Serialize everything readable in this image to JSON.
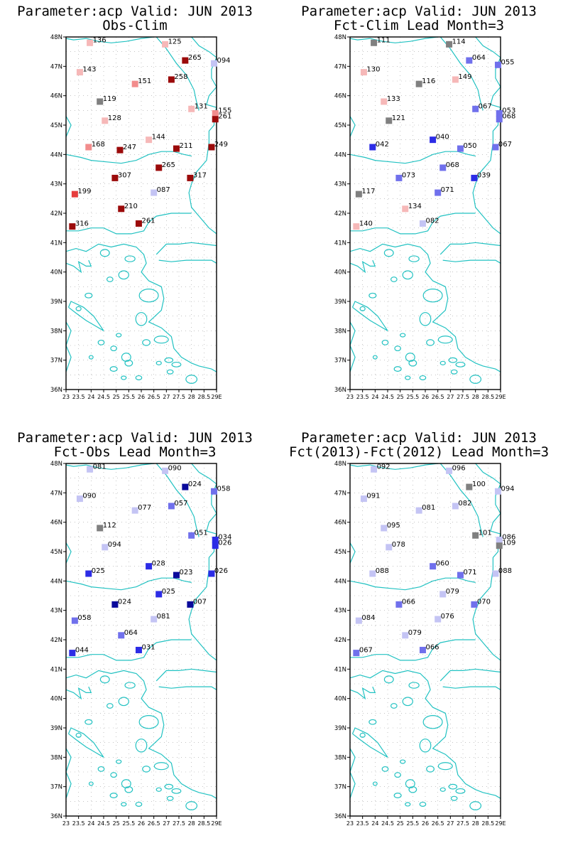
{
  "panels": [
    {
      "title": "Parameter:acp Valid: JUN 2013",
      "subtitle": "Obs-Clim"
    },
    {
      "title": "Parameter:acp Valid: JUN 2013",
      "subtitle": "Fct-Clim Lead Month=3"
    },
    {
      "title": "Parameter:acp Valid: JUN 2013",
      "subtitle": "Fct-Obs Lead Month=3"
    },
    {
      "title": "Parameter:acp Valid: JUN 2013",
      "subtitle": "Fct(2013)-Fct(2012) Lead Month=3"
    }
  ],
  "colors": {
    "coast": "#22c2c2",
    "grid": "#a0a0a0",
    "frame": "#000000",
    "grey": "#808080",
    "red_dark": "#9b0a0a",
    "red": "#e63c3c",
    "salmon": "#f28c8c",
    "pink": "#f6b8b8",
    "lavender": "#c4c4f4",
    "lilac": "#9c9cf0",
    "periwinkle": "#7070ec",
    "blue": "#2c2ce6",
    "navy": "#0a0a9b"
  },
  "chart_data": {
    "type": "map",
    "xlim": [
      23,
      29
    ],
    "ylim": [
      36,
      48
    ],
    "lat_ticks": [
      "36N",
      "37N",
      "38N",
      "39N",
      "40N",
      "41N",
      "42N",
      "43N",
      "44N",
      "45N",
      "46N",
      "47N",
      "48N"
    ],
    "lon_ticks": [
      "23",
      "23.5",
      "24",
      "24.5",
      "25",
      "25.5",
      "26",
      "26.5",
      "27",
      "27.5",
      "28",
      "28.5",
      "29E"
    ],
    "grid": true,
    "panels": [
      {
        "name": "Obs-Clim",
        "stations": [
          {
            "lon": 23.95,
            "lat": 47.8,
            "label": "136",
            "color": "pink"
          },
          {
            "lon": 26.95,
            "lat": 47.75,
            "label": "125",
            "color": "pink"
          },
          {
            "lon": 27.75,
            "lat": 47.2,
            "label": "265",
            "color": "red_dark"
          },
          {
            "lon": 28.9,
            "lat": 47.1,
            "label": "094",
            "color": "lavender"
          },
          {
            "lon": 23.55,
            "lat": 46.8,
            "label": "143",
            "color": "pink"
          },
          {
            "lon": 25.75,
            "lat": 46.4,
            "label": "151",
            "color": "salmon"
          },
          {
            "lon": 27.2,
            "lat": 46.55,
            "label": "258",
            "color": "red_dark"
          },
          {
            "lon": 24.35,
            "lat": 45.8,
            "label": "119",
            "color": "grey"
          },
          {
            "lon": 28.0,
            "lat": 45.55,
            "label": "131",
            "color": "pink"
          },
          {
            "lon": 28.95,
            "lat": 45.4,
            "label": "155",
            "color": "salmon"
          },
          {
            "lon": 28.95,
            "lat": 45.2,
            "label": "261",
            "color": "red_dark"
          },
          {
            "lon": 24.55,
            "lat": 45.15,
            "label": "128",
            "color": "pink"
          },
          {
            "lon": 26.3,
            "lat": 44.5,
            "label": "144",
            "color": "pink"
          },
          {
            "lon": 23.9,
            "lat": 44.25,
            "label": "168",
            "color": "salmon"
          },
          {
            "lon": 25.15,
            "lat": 44.15,
            "label": "247",
            "color": "red_dark"
          },
          {
            "lon": 27.4,
            "lat": 44.2,
            "label": "211",
            "color": "red_dark"
          },
          {
            "lon": 28.8,
            "lat": 44.25,
            "label": "249",
            "color": "red_dark"
          },
          {
            "lon": 26.7,
            "lat": 43.55,
            "label": "265",
            "color": "red_dark"
          },
          {
            "lon": 24.95,
            "lat": 43.2,
            "label": "307",
            "color": "red_dark"
          },
          {
            "lon": 27.95,
            "lat": 43.2,
            "label": "317",
            "color": "red_dark"
          },
          {
            "lon": 23.35,
            "lat": 42.65,
            "label": "199",
            "color": "red"
          },
          {
            "lon": 26.5,
            "lat": 42.7,
            "label": "087",
            "color": "lavender"
          },
          {
            "lon": 25.2,
            "lat": 42.15,
            "label": "210",
            "color": "red_dark"
          },
          {
            "lon": 25.9,
            "lat": 41.65,
            "label": "261",
            "color": "red_dark"
          },
          {
            "lon": 23.25,
            "lat": 41.55,
            "label": "316",
            "color": "red_dark"
          }
        ]
      },
      {
        "name": "Fct-Clim Lead Month=3",
        "stations": [
          {
            "lon": 23.95,
            "lat": 47.8,
            "label": "111",
            "color": "grey"
          },
          {
            "lon": 26.95,
            "lat": 47.75,
            "label": "114",
            "color": "grey"
          },
          {
            "lon": 27.75,
            "lat": 47.2,
            "label": "064",
            "color": "periwinkle"
          },
          {
            "lon": 28.9,
            "lat": 47.05,
            "label": "055",
            "color": "periwinkle"
          },
          {
            "lon": 23.55,
            "lat": 46.8,
            "label": "130",
            "color": "pink"
          },
          {
            "lon": 25.75,
            "lat": 46.4,
            "label": "116",
            "color": "grey"
          },
          {
            "lon": 27.2,
            "lat": 46.55,
            "label": "149",
            "color": "pink"
          },
          {
            "lon": 24.35,
            "lat": 45.8,
            "label": "133",
            "color": "pink"
          },
          {
            "lon": 28.0,
            "lat": 45.55,
            "label": "067",
            "color": "periwinkle"
          },
          {
            "lon": 28.95,
            "lat": 45.4,
            "label": "053",
            "color": "periwinkle"
          },
          {
            "lon": 28.95,
            "lat": 45.2,
            "label": "068",
            "color": "periwinkle"
          },
          {
            "lon": 24.55,
            "lat": 45.15,
            "label": "121",
            "color": "grey"
          },
          {
            "lon": 26.3,
            "lat": 44.5,
            "label": "040",
            "color": "blue"
          },
          {
            "lon": 23.9,
            "lat": 44.25,
            "label": "042",
            "color": "blue"
          },
          {
            "lon": 27.4,
            "lat": 44.2,
            "label": "050",
            "color": "periwinkle"
          },
          {
            "lon": 28.8,
            "lat": 44.25,
            "label": "067",
            "color": "periwinkle"
          },
          {
            "lon": 26.7,
            "lat": 43.55,
            "label": "068",
            "color": "periwinkle"
          },
          {
            "lon": 24.95,
            "lat": 43.2,
            "label": "073",
            "color": "periwinkle"
          },
          {
            "lon": 27.95,
            "lat": 43.2,
            "label": "039",
            "color": "blue"
          },
          {
            "lon": 23.35,
            "lat": 42.65,
            "label": "117",
            "color": "grey"
          },
          {
            "lon": 26.5,
            "lat": 42.7,
            "label": "071",
            "color": "periwinkle"
          },
          {
            "lon": 25.2,
            "lat": 42.15,
            "label": "134",
            "color": "pink"
          },
          {
            "lon": 25.9,
            "lat": 41.65,
            "label": "082",
            "color": "lavender"
          },
          {
            "lon": 23.25,
            "lat": 41.55,
            "label": "140",
            "color": "pink"
          }
        ]
      },
      {
        "name": "Fct-Obs Lead Month=3",
        "stations": [
          {
            "lon": 23.95,
            "lat": 47.8,
            "label": "081",
            "color": "lavender"
          },
          {
            "lon": 26.95,
            "lat": 47.75,
            "label": "090",
            "color": "lavender"
          },
          {
            "lon": 27.75,
            "lat": 47.2,
            "label": "024",
            "color": "navy"
          },
          {
            "lon": 28.9,
            "lat": 47.05,
            "label": "058",
            "color": "periwinkle"
          },
          {
            "lon": 23.55,
            "lat": 46.8,
            "label": "090",
            "color": "lavender"
          },
          {
            "lon": 25.75,
            "lat": 46.4,
            "label": "077",
            "color": "lavender"
          },
          {
            "lon": 27.2,
            "lat": 46.55,
            "label": "057",
            "color": "periwinkle"
          },
          {
            "lon": 24.35,
            "lat": 45.8,
            "label": "112",
            "color": "grey"
          },
          {
            "lon": 28.0,
            "lat": 45.55,
            "label": "051",
            "color": "periwinkle"
          },
          {
            "lon": 28.95,
            "lat": 45.4,
            "label": "034",
            "color": "blue"
          },
          {
            "lon": 28.95,
            "lat": 45.2,
            "label": "026",
            "color": "blue"
          },
          {
            "lon": 24.55,
            "lat": 45.15,
            "label": "094",
            "color": "lavender"
          },
          {
            "lon": 26.3,
            "lat": 44.5,
            "label": "028",
            "color": "blue"
          },
          {
            "lon": 23.9,
            "lat": 44.25,
            "label": "025",
            "color": "blue"
          },
          {
            "lon": 27.4,
            "lat": 44.2,
            "label": "023",
            "color": "navy"
          },
          {
            "lon": 28.8,
            "lat": 44.25,
            "label": "026",
            "color": "blue"
          },
          {
            "lon": 26.7,
            "lat": 43.55,
            "label": "025",
            "color": "blue"
          },
          {
            "lon": 24.95,
            "lat": 43.2,
            "label": "024",
            "color": "navy"
          },
          {
            "lon": 27.95,
            "lat": 43.2,
            "label": "007",
            "color": "navy"
          },
          {
            "lon": 23.35,
            "lat": 42.65,
            "label": "058",
            "color": "periwinkle"
          },
          {
            "lon": 26.5,
            "lat": 42.7,
            "label": "081",
            "color": "lavender"
          },
          {
            "lon": 25.2,
            "lat": 42.15,
            "label": "064",
            "color": "periwinkle"
          },
          {
            "lon": 25.9,
            "lat": 41.65,
            "label": "031",
            "color": "blue"
          },
          {
            "lon": 23.25,
            "lat": 41.55,
            "label": "044",
            "color": "blue"
          }
        ]
      },
      {
        "name": "Fct(2013)-Fct(2012) Lead Month=3",
        "stations": [
          {
            "lon": 23.95,
            "lat": 47.8,
            "label": "092",
            "color": "lavender"
          },
          {
            "lon": 26.95,
            "lat": 47.75,
            "label": "096",
            "color": "lavender"
          },
          {
            "lon": 27.75,
            "lat": 47.2,
            "label": "100",
            "color": "grey"
          },
          {
            "lon": 28.9,
            "lat": 47.05,
            "label": "094",
            "color": "lavender"
          },
          {
            "lon": 23.55,
            "lat": 46.8,
            "label": "091",
            "color": "lavender"
          },
          {
            "lon": 25.75,
            "lat": 46.4,
            "label": "081",
            "color": "lavender"
          },
          {
            "lon": 27.2,
            "lat": 46.55,
            "label": "082",
            "color": "lavender"
          },
          {
            "lon": 24.35,
            "lat": 45.8,
            "label": "095",
            "color": "lavender"
          },
          {
            "lon": 28.0,
            "lat": 45.55,
            "label": "101",
            "color": "grey"
          },
          {
            "lon": 28.95,
            "lat": 45.4,
            "label": "086",
            "color": "lavender"
          },
          {
            "lon": 28.95,
            "lat": 45.2,
            "label": "109",
            "color": "grey"
          },
          {
            "lon": 24.55,
            "lat": 45.15,
            "label": "078",
            "color": "lavender"
          },
          {
            "lon": 26.3,
            "lat": 44.5,
            "label": "060",
            "color": "periwinkle"
          },
          {
            "lon": 23.9,
            "lat": 44.25,
            "label": "088",
            "color": "lavender"
          },
          {
            "lon": 27.4,
            "lat": 44.2,
            "label": "071",
            "color": "periwinkle"
          },
          {
            "lon": 28.8,
            "lat": 44.25,
            "label": "088",
            "color": "lavender"
          },
          {
            "lon": 26.7,
            "lat": 43.55,
            "label": "079",
            "color": "lavender"
          },
          {
            "lon": 24.95,
            "lat": 43.2,
            "label": "066",
            "color": "periwinkle"
          },
          {
            "lon": 27.95,
            "lat": 43.2,
            "label": "070",
            "color": "periwinkle"
          },
          {
            "lon": 23.35,
            "lat": 42.65,
            "label": "084",
            "color": "lavender"
          },
          {
            "lon": 26.5,
            "lat": 42.7,
            "label": "076",
            "color": "lavender"
          },
          {
            "lon": 25.2,
            "lat": 42.15,
            "label": "079",
            "color": "lavender"
          },
          {
            "lon": 25.9,
            "lat": 41.65,
            "label": "066",
            "color": "periwinkle"
          },
          {
            "lon": 23.25,
            "lat": 41.55,
            "label": "067",
            "color": "periwinkle"
          }
        ]
      }
    ]
  }
}
